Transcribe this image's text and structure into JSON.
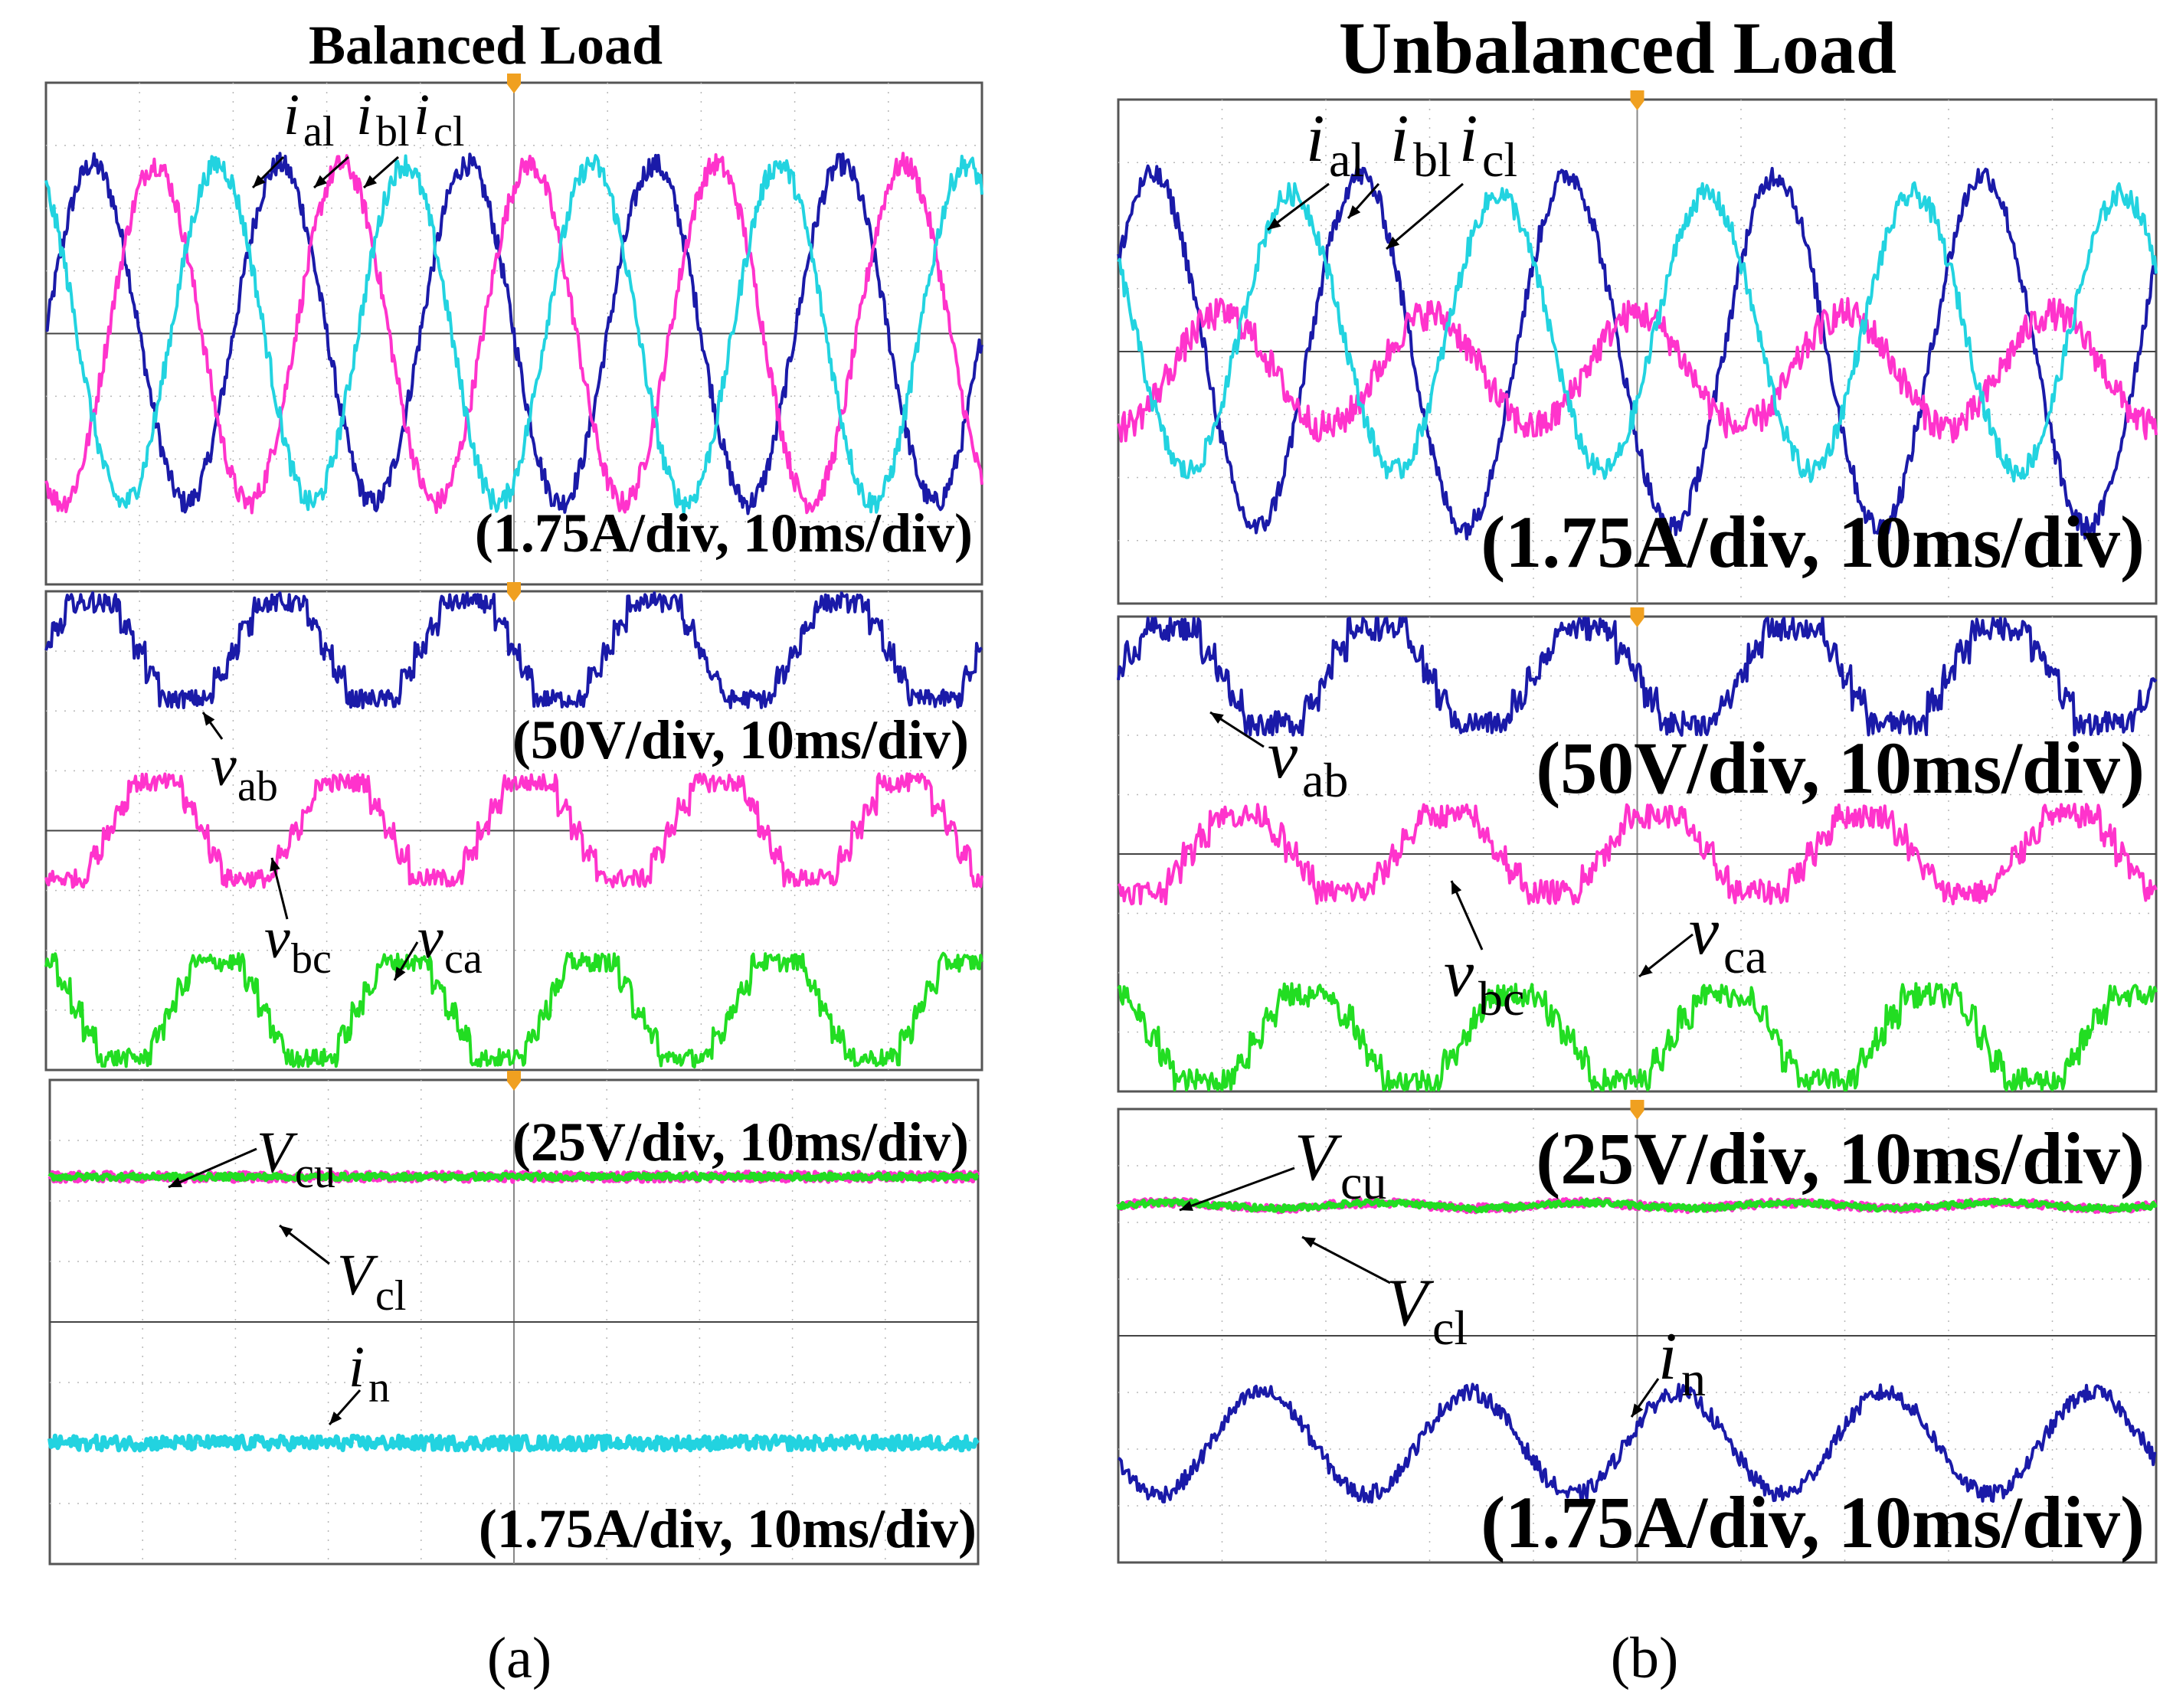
{
  "figure": {
    "subfigure_a_caption": "(a)",
    "subfigure_b_caption": "(b)"
  },
  "chart_data": [
    {
      "type": "line",
      "id": "a-currents",
      "title": "Balanced Load",
      "scale_label": "(1.75A/div, 10ms/div)",
      "x_unit_per_div": "10ms",
      "y_unit_per_div": "1.75A",
      "divisions": {
        "x": 10,
        "y": 8
      },
      "series": [
        {
          "name": "i_al",
          "color": "#1a1aa8",
          "waveform": "sine",
          "amplitude_div": 2.7,
          "offset_div": 0.0,
          "cycles": 5.0,
          "phase_deg": 0,
          "noise": 0.18
        },
        {
          "name": "i_bl",
          "color": "#ff33cc",
          "waveform": "sine",
          "amplitude_div": 2.7,
          "offset_div": 0.0,
          "cycles": 5.0,
          "phase_deg": 240,
          "noise": 0.18
        },
        {
          "name": "i_cl",
          "color": "#22d3e0",
          "waveform": "sine",
          "amplitude_div": 2.7,
          "offset_div": 0.0,
          "cycles": 5.0,
          "phase_deg": 120,
          "noise": 0.18
        }
      ],
      "labels": [
        {
          "main": "i",
          "sub": "al"
        },
        {
          "main": "i",
          "sub": "bl"
        },
        {
          "main": "i",
          "sub": "cl"
        }
      ]
    },
    {
      "type": "line",
      "id": "a-voltages",
      "scale_label": "(50V/div, 10ms/div)",
      "x_unit_per_div": "10ms",
      "y_unit_per_div": "50V",
      "divisions": {
        "x": 10,
        "y": 8
      },
      "series": [
        {
          "name": "v_ab",
          "color": "#1a1aa8",
          "waveform": "staircase",
          "amplitude_div": 1.0,
          "offset_div": 3.0,
          "cycles": 5.0,
          "phase_deg": 0,
          "noise": 0.15
        },
        {
          "name": "v_bc",
          "color": "#ff33cc",
          "waveform": "staircase",
          "amplitude_div": 1.0,
          "offset_div": 0.0,
          "cycles": 5.0,
          "phase_deg": 240,
          "noise": 0.15
        },
        {
          "name": "v_ca",
          "color": "#22dd22",
          "waveform": "staircase",
          "amplitude_div": 1.0,
          "offset_div": -3.0,
          "cycles": 5.0,
          "phase_deg": 120,
          "noise": 0.15
        }
      ],
      "labels": [
        {
          "main": "v",
          "sub": "ab"
        },
        {
          "main": "v",
          "sub": "bc"
        },
        {
          "main": "v",
          "sub": "ca"
        }
      ]
    },
    {
      "type": "line",
      "id": "a-dclink",
      "scale_label": "(25V/div, 10ms/div)",
      "x_unit_per_div": "10ms",
      "y_unit_per_div": "25V",
      "divisions": {
        "x": 10,
        "y": 4
      },
      "series": [
        {
          "name": "V_cu",
          "color": "#ff33cc",
          "waveform": "flat",
          "amplitude_div": 0.0,
          "offset_div": 0.4,
          "cycles": 5.0,
          "phase_deg": 0,
          "noise": 0.08
        },
        {
          "name": "V_cl",
          "color": "#22dd22",
          "waveform": "flat",
          "amplitude_div": 0.0,
          "offset_div": 0.4,
          "cycles": 5.0,
          "phase_deg": 0,
          "noise": 0.05
        }
      ],
      "labels": [
        {
          "main": "V",
          "sub": "cu"
        },
        {
          "main": "V",
          "sub": "cl"
        }
      ]
    },
    {
      "type": "line",
      "id": "a-neutral",
      "scale_label": "(1.75A/div, 10ms/div)",
      "x_unit_per_div": "10ms",
      "y_unit_per_div": "1.75A",
      "divisions": {
        "x": 10,
        "y": 4
      },
      "series": [
        {
          "name": "i_n",
          "color": "#22d3e0",
          "waveform": "flat",
          "amplitude_div": 0.0,
          "offset_div": 0.0,
          "cycles": 5.0,
          "phase_deg": 0,
          "noise": 0.12
        }
      ],
      "labels": [
        {
          "main": "i",
          "sub": "n"
        }
      ]
    },
    {
      "type": "line",
      "id": "b-currents",
      "title": "Unbalanced Load",
      "scale_label": "(1.75A/div, 10ms/div)",
      "x_unit_per_div": "10ms",
      "y_unit_per_div": "1.75A",
      "divisions": {
        "x": 10,
        "y": 8
      },
      "series": [
        {
          "name": "i_al",
          "color": "#1a1aa8",
          "waveform": "sine",
          "amplitude_div": 2.8,
          "offset_div": 0.0,
          "cycles": 5.0,
          "phase_deg": 30,
          "noise": 0.18
        },
        {
          "name": "i_bl",
          "color": "#ff33cc",
          "waveform": "sine",
          "amplitude_div": 0.9,
          "offset_div": -0.3,
          "cycles": 5.0,
          "phase_deg": 270,
          "noise": 0.25
        },
        {
          "name": "i_cl",
          "color": "#22d3e0",
          "waveform": "sine",
          "amplitude_div": 2.2,
          "offset_div": 0.3,
          "cycles": 5.0,
          "phase_deg": 150,
          "noise": 0.18
        }
      ],
      "labels": [
        {
          "main": "i",
          "sub": "al"
        },
        {
          "main": "i",
          "sub": "bl"
        },
        {
          "main": "i",
          "sub": "cl"
        }
      ]
    },
    {
      "type": "line",
      "id": "b-voltages",
      "scale_label": "(50V/div, 10ms/div)",
      "x_unit_per_div": "10ms",
      "y_unit_per_div": "50V",
      "divisions": {
        "x": 10,
        "y": 8
      },
      "series": [
        {
          "name": "v_ab",
          "color": "#1a1aa8",
          "waveform": "staircase",
          "amplitude_div": 1.0,
          "offset_div": 3.0,
          "cycles": 5.0,
          "phase_deg": 0,
          "noise": 0.2
        },
        {
          "name": "v_bc",
          "color": "#ff33cc",
          "waveform": "staircase",
          "amplitude_div": 0.8,
          "offset_div": 0.0,
          "cycles": 5.0,
          "phase_deg": 240,
          "noise": 0.2
        },
        {
          "name": "v_ca",
          "color": "#22dd22",
          "waveform": "staircase",
          "amplitude_div": 0.9,
          "offset_div": -3.1,
          "cycles": 5.0,
          "phase_deg": 120,
          "noise": 0.2
        }
      ],
      "labels": [
        {
          "main": "v",
          "sub": "ab"
        },
        {
          "main": "v",
          "sub": "bc"
        },
        {
          "main": "v",
          "sub": "ca"
        }
      ]
    },
    {
      "type": "line",
      "id": "b-dclink",
      "scale_label": "(25V/div, 10ms/div)",
      "x_unit_per_div": "10ms",
      "y_unit_per_div": "25V",
      "divisions": {
        "x": 10,
        "y": 4
      },
      "series": [
        {
          "name": "V_cu",
          "color": "#ff33cc",
          "waveform": "flat",
          "amplitude_div": 0.05,
          "offset_div": 0.3,
          "cycles": 5.0,
          "phase_deg": 0,
          "noise": 0.07
        },
        {
          "name": "V_cl",
          "color": "#22dd22",
          "waveform": "flat",
          "amplitude_div": 0.05,
          "offset_div": 0.3,
          "cycles": 5.0,
          "phase_deg": 0,
          "noise": 0.05
        }
      ],
      "labels": [
        {
          "main": "V",
          "sub": "cu"
        },
        {
          "main": "V",
          "sub": "cl"
        }
      ]
    },
    {
      "type": "line",
      "id": "b-neutral",
      "scale_label": "(1.75A/div, 10ms/div)",
      "x_unit_per_div": "10ms",
      "y_unit_per_div": "1.75A",
      "divisions": {
        "x": 10,
        "y": 4
      },
      "series": [
        {
          "name": "i_n",
          "color": "#1a1aa8",
          "waveform": "sine",
          "amplitude_div": 0.9,
          "offset_div": 0.1,
          "cycles": 5.0,
          "phase_deg": 200,
          "noise": 0.15
        }
      ],
      "labels": [
        {
          "main": "i",
          "sub": "n"
        }
      ]
    }
  ]
}
